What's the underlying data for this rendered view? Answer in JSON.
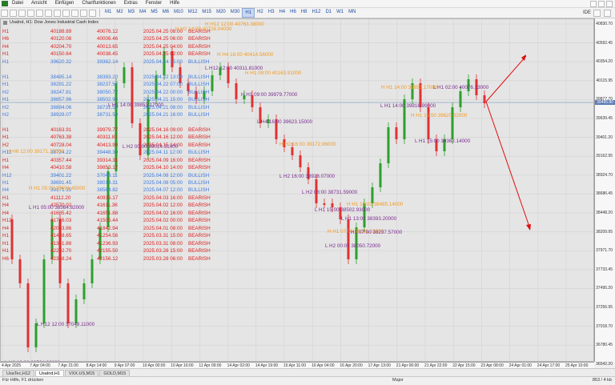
{
  "menu": [
    "Datei",
    "Ansicht",
    "Einfügen",
    "Chartfunktionen",
    "Extras",
    "Fenster",
    "Hilfe"
  ],
  "timeframes": [
    "M1",
    "M2",
    "M3",
    "M4",
    "M5",
    "M6",
    "M10",
    "M12",
    "M15",
    "M20",
    "M30",
    "H1",
    "H2",
    "H3",
    "H4",
    "H6",
    "H8",
    "H12",
    "D1",
    "W1",
    "MN"
  ],
  "active_timeframe": "H1",
  "chart_title": "UsaInd, H1:  Dow Jones Industrial Cash Index",
  "ide_label": "IDE",
  "current_price": "39495.80",
  "price_labels": [
    "40830.70",
    "40592.45",
    "40354.20",
    "40115.95",
    "39877.70",
    "39639.45",
    "39401.20",
    "39162.95",
    "38924.70",
    "38686.45",
    "38448.20",
    "38209.95",
    "37971.70",
    "37733.45",
    "37495.20",
    "37256.95",
    "37018.70",
    "36780.45",
    "36542.20"
  ],
  "time_labels": [
    "4 Apr 2025",
    "7 Apr 04:00",
    "7 Apr 21:00",
    "8 Apr 14:00",
    "9 Apr 07:00",
    "10 Apr 00:00",
    "10 Apr 16:00",
    "11 Apr 09:00",
    "14 Apr 02:00",
    "14 Apr 19:00",
    "15 Apr 11:00",
    "16 Apr 04:00",
    "16 Apr 20:00",
    "17 Apr 13:00",
    "21 Apr 06:00",
    "21 Apr 22:00",
    "22 Apr 15:00",
    "23 Apr 08:00",
    "24 Apr 01:00",
    "24 Apr 17:00",
    "25 Apr 10:00"
  ],
  "signal_table": [
    {
      "tf": "H1",
      "p1": "40188.89",
      "p2": "40076.12",
      "date": "2025.04.25 08:00",
      "signal": "BEARISH"
    },
    {
      "tf": "H6",
      "p1": "40120.08",
      "p2": "40006.46",
      "date": "2025.04.25 06:00",
      "signal": "BEARISH"
    },
    {
      "tf": "H4",
      "p1": "40204.70",
      "p2": "40013.65",
      "date": "2025.04.25 04:00",
      "signal": "BEARISH"
    },
    {
      "tf": "H1",
      "p1": "40150.64",
      "p2": "40038.45",
      "date": "2025.04.25 02:00",
      "signal": "BEARISH"
    },
    {
      "tf": "H1",
      "p1": "39620.32",
      "p2": "39362.14",
      "date": "2025.04.24 15:00",
      "signal": "BULLISH"
    },
    {
      "tf": "",
      "p1": "",
      "p2": "",
      "date": "",
      "signal": ""
    },
    {
      "tf": "H1",
      "p1": "38485.14",
      "p2": "38393.20",
      "date": "2025.04.22 13:00",
      "signal": "BULLISH"
    },
    {
      "tf": "H1",
      "p1": "38291.22",
      "p2": "38237.57",
      "date": "2025.04.22 07:00",
      "signal": "BULLISH"
    },
    {
      "tf": "H2",
      "p1": "38247.81",
      "p2": "38050.72",
      "date": "2025.04.22 00:00",
      "signal": "BULLISH"
    },
    {
      "tf": "H1",
      "p1": "38857.96",
      "p2": "38502.93",
      "date": "2025.04.21 15:00",
      "signal": "BULLISH"
    },
    {
      "tf": "H2",
      "p1": "38884.06",
      "p2": "38731.59",
      "date": "2025.04.21 08:00",
      "signal": "BULLISH"
    },
    {
      "tf": "H2",
      "p1": "38928.07",
      "p2": "38731.59",
      "date": "2025.04.21 16:00",
      "signal": "BULLISH"
    },
    {
      "tf": "",
      "p1": "",
      "p2": "",
      "date": "",
      "signal": ""
    },
    {
      "tf": "H1",
      "p1": "40163.91",
      "p2": "39979.77",
      "date": "2025.04.16 09:00",
      "signal": "BEARISH"
    },
    {
      "tf": "H1",
      "p1": "40763.38",
      "p2": "40311.81",
      "date": "2025.04.16 12:00",
      "signal": "BEARISH"
    },
    {
      "tf": "H2",
      "p1": "40728.04",
      "p2": "40413.99",
      "date": "2025.04.15 14:00",
      "signal": "BEARISH"
    },
    {
      "tf": "H12",
      "p1": "39724.22",
      "p2": "39448.30",
      "date": "2025.04.11 12:00",
      "signal": "BULLISH"
    },
    {
      "tf": "H1",
      "p1": "40357.44",
      "p2": "39314.31",
      "date": "2025.04.09 16:00",
      "signal": "BEARISH"
    },
    {
      "tf": "H4",
      "p1": "40410.58",
      "p2": "39853.17",
      "date": "2025.04.10 14:00",
      "signal": "BEARISH"
    },
    {
      "tf": "H12",
      "p1": "39401.22",
      "p2": "37048.11",
      "date": "2025.04.08 12:00",
      "signal": "BULLISH"
    },
    {
      "tf": "H1",
      "p1": "38691.45",
      "p2": "38014.31",
      "date": "2025.04.08 05:00",
      "signal": "BULLISH"
    },
    {
      "tf": "H4",
      "p1": "39171.15",
      "p2": "38564.82",
      "date": "2025.04.07 12:00",
      "signal": "BULLISH"
    },
    {
      "tf": "H1",
      "p1": "41112.20",
      "p2": "40935.17",
      "date": "2025.04.03 16:00",
      "signal": "BEARISH"
    },
    {
      "tf": "H4",
      "p1": "42570.02",
      "p2": "41611.36",
      "date": "2025.04.02 12:00",
      "signal": "BEARISH"
    },
    {
      "tf": "H4",
      "p1": "41685.42",
      "p2": "41651.88",
      "date": "2025.04.02 16:00",
      "signal": "BEARISH"
    },
    {
      "tf": "H12",
      "p1": "41766.03",
      "p2": "41505.44",
      "date": "2025.04.02 00:00",
      "signal": "BEARISH"
    },
    {
      "tf": "H4",
      "p1": "42033.86",
      "p2": "41842.94",
      "date": "2025.04.01 08:00",
      "signal": "BEARISH"
    },
    {
      "tf": "H1",
      "p1": "41438.65",
      "p2": "41254.56",
      "date": "2025.03.31 15:00",
      "signal": "BEARISH"
    },
    {
      "tf": "H1",
      "p1": "41341.88",
      "p2": "41236.93",
      "date": "2025.03.31 08:00",
      "signal": "BEARISH"
    },
    {
      "tf": "H1",
      "p1": "42292.70",
      "p2": "42155.50",
      "date": "2025.03.28 15:00",
      "signal": "BEARISH"
    },
    {
      "tf": "H6",
      "p1": "42368.24",
      "p2": "42156.12",
      "date": "2025.03.28 06:00",
      "signal": "BEARISH"
    }
  ],
  "chart_annotations": [
    {
      "text": "H H12 12:00 40763.38000",
      "color": "orange"
    },
    {
      "text": "H H2 14:00 40728.04000",
      "color": "orange"
    },
    {
      "text": "H H4 16:00 40414.56000",
      "color": "orange"
    },
    {
      "text": "L H12 12:00 40311.81000",
      "color": "purple"
    },
    {
      "text": "H H1 09:00 40163.91000",
      "color": "orange"
    },
    {
      "text": "H H1 09:00 39979.77000",
      "color": "purple"
    },
    {
      "text": "L H1 14:00 39853.17000",
      "color": "purple"
    },
    {
      "text": "L H4 16:00 39623.15000",
      "color": "purple"
    },
    {
      "text": "H H2 16:00 39172.96000",
      "color": "orange"
    },
    {
      "text": "L H2 00:00 39014.31000",
      "color": "purple"
    },
    {
      "text": "H H6 12:00 39171.15000",
      "color": "orange"
    },
    {
      "text": "L H2 16:00 38928.07000",
      "color": "purple"
    },
    {
      "text": "L H2 08:00 38731.59000",
      "color": "purple"
    },
    {
      "text": "H H1 05:00 38691.45000",
      "color": "orange"
    },
    {
      "text": "L H1 05:00 38564.82000",
      "color": "purple"
    },
    {
      "text": "H H1 15:00 38485.14000",
      "color": "orange"
    },
    {
      "text": "L H1 15:00 38502.93000",
      "color": "purple"
    },
    {
      "text": "L H1 13:00 38393.20000",
      "color": "purple"
    },
    {
      "text": "H H1 07:00 38291.22000",
      "color": "orange"
    },
    {
      "text": "L H1 07:00 38237.57000",
      "color": "purple"
    },
    {
      "text": "L H2 00:00 38050.72000",
      "color": "purple"
    },
    {
      "text": "H H1 14:00 39853.17000",
      "color": "orange"
    },
    {
      "text": "L H1 14:00 39816.99000",
      "color": "purple"
    },
    {
      "text": "H H1 15:00 39620.32000",
      "color": "orange"
    },
    {
      "text": "L H1 15:00 39362.14000",
      "color": "purple"
    },
    {
      "text": "L H1 02:00 40076.13000",
      "color": "purple"
    },
    {
      "text": "L H12 12:00 37048.11000",
      "color": "purple"
    },
    {
      "text": "L H6 12:00 36564.82000",
      "color": "purple"
    }
  ],
  "tabs": [
    "UsaTec,H12",
    "UsaInd,H1",
    "VXX.US,M15",
    "GOLD,M15"
  ],
  "active_tab": "UsaInd,H1",
  "status": {
    "help": "Für Hilfe, F1 drücken",
    "profile": "Major",
    "traffic": "853 / 4 kb"
  },
  "colors": {
    "bearish": "#e02020",
    "bullish": "#3a7be0",
    "bull_candle": "#2ca02c",
    "bear_candle": "#e03131",
    "arrow": "#e01010",
    "high_label": "#f29a1f",
    "low_label": "#7a2b8f"
  }
}
